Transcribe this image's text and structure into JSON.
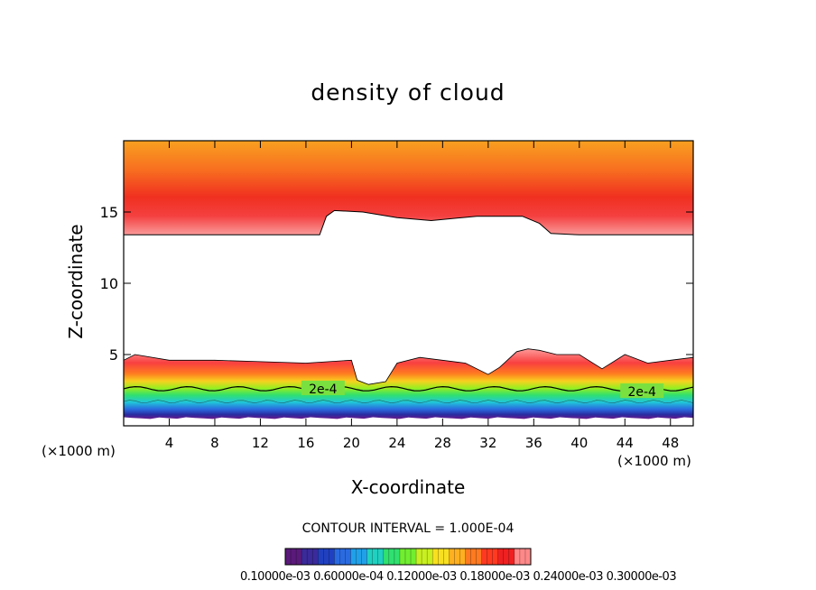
{
  "chart_data": {
    "type": "heatmap",
    "title": "density of cloud",
    "xlabel": "X-coordinate",
    "ylabel": "Z-coordinate",
    "x_unit_left": "(×1000 m)",
    "x_unit_right": "(×1000 m)",
    "xlim": [
      0,
      50
    ],
    "ylim": [
      0,
      20
    ],
    "xticks": [
      4,
      8,
      12,
      16,
      20,
      24,
      28,
      32,
      36,
      40,
      44,
      48
    ],
    "xtick_labels": [
      "4",
      "8",
      "12",
      "16",
      "20",
      "24",
      "28",
      "32",
      "36",
      "40",
      "44",
      "48"
    ],
    "yticks": [
      5,
      10,
      15
    ],
    "ytick_labels": [
      "5",
      "10",
      "15"
    ],
    "upper_layer_bottom": {
      "x": [
        0,
        17.2,
        17.8,
        18.5,
        21,
        24,
        27,
        31,
        35,
        36.5,
        37.5,
        40,
        45,
        50
      ],
      "z": [
        13.4,
        13.4,
        14.7,
        15.1,
        15,
        14.6,
        14.4,
        14.7,
        14.7,
        14.2,
        13.5,
        13.4,
        13.4,
        13.4
      ]
    },
    "lower_layer_top": {
      "x": [
        0,
        1,
        4,
        8,
        12,
        16,
        20,
        20.5,
        21.5,
        23,
        24,
        26,
        30,
        32,
        33,
        34.5,
        35.5,
        36.5,
        38,
        40,
        42,
        44,
        46,
        48,
        50
      ],
      "z": [
        4.6,
        5,
        4.6,
        4.6,
        4.5,
        4.4,
        4.6,
        3.2,
        2.9,
        3.1,
        4.4,
        4.8,
        4.4,
        3.6,
        4.1,
        5.2,
        5.4,
        5.3,
        5,
        5,
        4,
        5,
        4.4,
        4.6,
        4.8
      ]
    },
    "lower_layer_base_z": 0.6,
    "contour_labels": [
      {
        "text": "2e-4",
        "x": 17.5,
        "z": 2.6
      },
      {
        "text": "2e-4",
        "x": 45.5,
        "z": 2.4
      }
    ],
    "contour_interval_text": "CONTOUR INTERVAL = 1.000E-04",
    "colorbar": {
      "min": 0.0001,
      "max": 0.0003,
      "label_text": "0.10000e-03 0.60000e-04 0.12000e-03 0.18000e-03 0.24000e-03 0.30000e-03",
      "colors": [
        "#5a1a7a",
        "#3a2a9a",
        "#2040c0",
        "#2a6ae0",
        "#20a0e8",
        "#20d0c0",
        "#30e070",
        "#70ee30",
        "#c8f020",
        "#f8e020",
        "#ffb020",
        "#ff7a20",
        "#ff3a20",
        "#f02020",
        "#ff8888"
      ]
    }
  }
}
